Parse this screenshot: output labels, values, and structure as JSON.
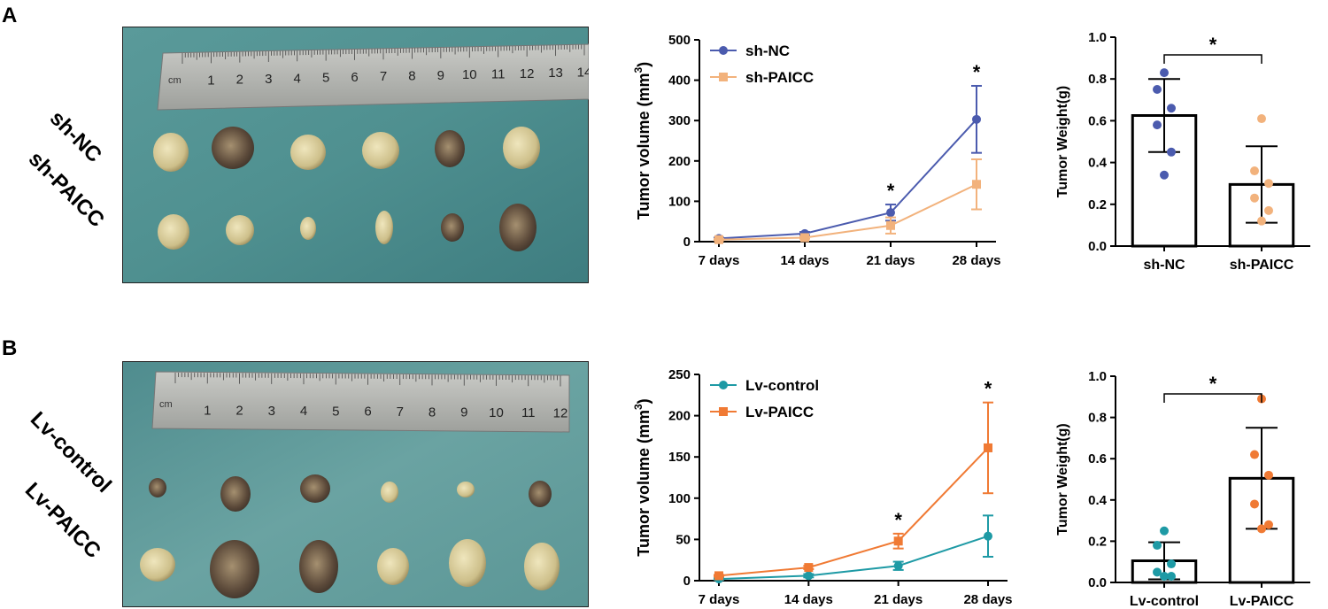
{
  "panels": [
    {
      "letter": "A",
      "photo_labels": [
        "sh-NC",
        "sh-PAICC"
      ],
      "ruler_unit": "cm",
      "ruler_numbers": [
        "1",
        "2",
        "3",
        "4",
        "5",
        "6",
        "7",
        "8",
        "9",
        "10",
        "11",
        "12",
        "13",
        "14"
      ]
    },
    {
      "letter": "B",
      "photo_labels": [
        "Lv-control",
        "Lv-PAICC"
      ],
      "ruler_unit": "cm",
      "ruler_numbers": [
        "1",
        "2",
        "3",
        "4",
        "5",
        "6",
        "7",
        "8",
        "9",
        "10",
        "11",
        "12"
      ]
    }
  ],
  "colors": {
    "shNC": "#4B5BAE",
    "shPAICC": "#F2B27C",
    "lvControl": "#1E9AA5",
    "lvPAICC": "#F07A34"
  },
  "chart_data": [
    {
      "id": "A-line",
      "type": "line",
      "title": "",
      "ylabel": "Tumor volume (mm",
      "ylabel_sup": "3",
      "ylabel_end": ")",
      "categories": [
        "7 days",
        "14 days",
        "21 days",
        "28 days"
      ],
      "ylim": [
        0,
        500
      ],
      "yticks": [
        "0",
        "100",
        "200",
        "300",
        "400",
        "500"
      ],
      "series": [
        {
          "name": "sh-NC",
          "marker": "circle",
          "values": [
            8,
            20,
            72,
            303
          ],
          "err": [
            2,
            4,
            20,
            83
          ]
        },
        {
          "name": "sh-PAICC",
          "marker": "square",
          "values": [
            5,
            10,
            40,
            142
          ],
          "err": [
            2,
            3,
            20,
            62
          ]
        }
      ],
      "annotations": [
        {
          "category": "21 days",
          "text": "*"
        },
        {
          "category": "28 days",
          "text": "*"
        }
      ]
    },
    {
      "id": "A-bar",
      "type": "bar",
      "ylabel": "Tumor Weight(g)",
      "categories": [
        "sh-NC",
        "sh-PAICC"
      ],
      "ylim": [
        0,
        1.0
      ],
      "yticks": [
        "0.0",
        "0.2",
        "0.4",
        "0.6",
        "0.8",
        "1.0"
      ],
      "values": [
        0.625,
        0.295
      ],
      "err": [
        0.175,
        0.183
      ],
      "points": [
        [
          0.83,
          0.75,
          0.66,
          0.58,
          0.45,
          0.34
        ],
        [
          0.61,
          0.36,
          0.3,
          0.23,
          0.17,
          0.12
        ]
      ],
      "significance": "*"
    },
    {
      "id": "B-line",
      "type": "line",
      "ylabel": "Tumor volume (mm",
      "ylabel_sup": "3",
      "ylabel_end": ")",
      "categories": [
        "7 days",
        "14 days",
        "21 days",
        "28 days"
      ],
      "ylim": [
        0,
        250
      ],
      "yticks": [
        "0",
        "50",
        "100",
        "150",
        "200",
        "250"
      ],
      "series": [
        {
          "name": "Lv-control",
          "marker": "circle",
          "values": [
            2,
            6,
            18,
            54
          ],
          "err": [
            1,
            2,
            5,
            25
          ]
        },
        {
          "name": "Lv-PAICC",
          "marker": "square",
          "values": [
            6,
            16,
            48,
            161
          ],
          "err": [
            1,
            2,
            9,
            55
          ]
        }
      ],
      "annotations": [
        {
          "category": "21 days",
          "text": "*"
        },
        {
          "category": "28 days",
          "text": "*"
        }
      ]
    },
    {
      "id": "B-bar",
      "type": "bar",
      "ylabel": "Tumor Weight(g)",
      "categories": [
        "Lv-control",
        "Lv-PAICC"
      ],
      "ylim": [
        0,
        1.0
      ],
      "yticks": [
        "0.0",
        "0.2",
        "0.4",
        "0.6",
        "0.8",
        "1.0"
      ],
      "values": [
        0.105,
        0.505
      ],
      "err": [
        0.09,
        0.245
      ],
      "points": [
        [
          0.25,
          0.18,
          0.09,
          0.05,
          0.03,
          0.03
        ],
        [
          0.89,
          0.62,
          0.52,
          0.38,
          0.28,
          0.26
        ]
      ],
      "significance": "*"
    }
  ]
}
